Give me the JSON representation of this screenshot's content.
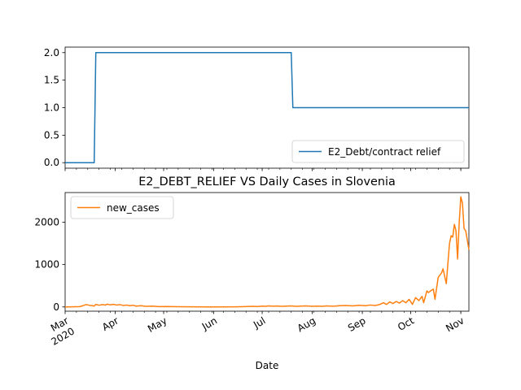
{
  "chart_data": [
    {
      "type": "line",
      "title": "",
      "xlabel": "",
      "ylabel": "",
      "ylim": [
        -0.1,
        2.1
      ],
      "yticks": [
        0.0,
        0.5,
        1.0,
        1.5,
        2.0
      ],
      "ytick_labels": [
        "0.0",
        "0.5",
        "1.0",
        "1.5",
        "2.0"
      ],
      "legend_position": "lower-right",
      "grid": false,
      "series": [
        {
          "name": "E2_Debt/contract relief",
          "color": "#1f77b4",
          "points": [
            [
              "2020-03-01",
              0
            ],
            [
              "2020-03-19",
              0
            ],
            [
              "2020-03-20",
              2
            ],
            [
              "2020-07-19",
              2
            ],
            [
              "2020-07-20",
              1
            ],
            [
              "2020-11-06",
              1
            ]
          ]
        }
      ]
    },
    {
      "type": "line",
      "title": "E2_DEBT_RELIEF VS Daily Cases in Slovenia",
      "xlabel": "Date",
      "ylabel": "",
      "ylim": [
        -100,
        2700
      ],
      "yticks": [
        0,
        1000,
        2000
      ],
      "ytick_labels": [
        "0",
        "1000",
        "2000"
      ],
      "xlim": [
        "2020-03-01",
        "2020-11-06"
      ],
      "xticks": [
        "2020-03-01",
        "2020-04-01",
        "2020-05-01",
        "2020-06-01",
        "2020-07-01",
        "2020-08-01",
        "2020-09-01",
        "2020-10-01",
        "2020-11-01"
      ],
      "xtick_labels": [
        "Mar\n2020",
        "Apr",
        "May",
        "Jun",
        "Jul",
        "Aug",
        "Sep",
        "Oct",
        "Nov"
      ],
      "legend_position": "upper-left",
      "grid": false,
      "series": [
        {
          "name": "new_cases",
          "color": "#ff7f0e",
          "points": [
            [
              "2020-03-01",
              0
            ],
            [
              "2020-03-05",
              2
            ],
            [
              "2020-03-08",
              5
            ],
            [
              "2020-03-10",
              8
            ],
            [
              "2020-03-12",
              30
            ],
            [
              "2020-03-14",
              55
            ],
            [
              "2020-03-16",
              40
            ],
            [
              "2020-03-18",
              30
            ],
            [
              "2020-03-19",
              20
            ],
            [
              "2020-03-20",
              60
            ],
            [
              "2020-03-22",
              40
            ],
            [
              "2020-03-24",
              55
            ],
            [
              "2020-03-26",
              45
            ],
            [
              "2020-03-27",
              65
            ],
            [
              "2020-03-29",
              50
            ],
            [
              "2020-03-31",
              60
            ],
            [
              "2020-04-02",
              45
            ],
            [
              "2020-04-04",
              55
            ],
            [
              "2020-04-06",
              35
            ],
            [
              "2020-04-08",
              45
            ],
            [
              "2020-04-10",
              30
            ],
            [
              "2020-04-12",
              40
            ],
            [
              "2020-04-14",
              20
            ],
            [
              "2020-04-17",
              30
            ],
            [
              "2020-04-20",
              15
            ],
            [
              "2020-04-24",
              20
            ],
            [
              "2020-04-28",
              8
            ],
            [
              "2020-05-03",
              10
            ],
            [
              "2020-05-10",
              5
            ],
            [
              "2020-05-20",
              2
            ],
            [
              "2020-06-01",
              1
            ],
            [
              "2020-06-15",
              4
            ],
            [
              "2020-06-20",
              8
            ],
            [
              "2020-06-25",
              15
            ],
            [
              "2020-06-28",
              10
            ],
            [
              "2020-07-01",
              20
            ],
            [
              "2020-07-03",
              15
            ],
            [
              "2020-07-05",
              25
            ],
            [
              "2020-07-08",
              18
            ],
            [
              "2020-07-10",
              22
            ],
            [
              "2020-07-13",
              15
            ],
            [
              "2020-07-16",
              20
            ],
            [
              "2020-07-19",
              25
            ],
            [
              "2020-07-22",
              15
            ],
            [
              "2020-07-25",
              20
            ],
            [
              "2020-07-28",
              25
            ],
            [
              "2020-08-01",
              15
            ],
            [
              "2020-08-04",
              20
            ],
            [
              "2020-08-07",
              15
            ],
            [
              "2020-08-10",
              25
            ],
            [
              "2020-08-14",
              18
            ],
            [
              "2020-08-18",
              30
            ],
            [
              "2020-08-22",
              35
            ],
            [
              "2020-08-26",
              25
            ],
            [
              "2020-08-30",
              40
            ],
            [
              "2020-09-03",
              30
            ],
            [
              "2020-09-06",
              45
            ],
            [
              "2020-09-09",
              35
            ],
            [
              "2020-09-12",
              60
            ],
            [
              "2020-09-14",
              100
            ],
            [
              "2020-09-16",
              60
            ],
            [
              "2020-09-18",
              120
            ],
            [
              "2020-09-20",
              80
            ],
            [
              "2020-09-22",
              130
            ],
            [
              "2020-09-24",
              90
            ],
            [
              "2020-09-26",
              150
            ],
            [
              "2020-09-28",
              100
            ],
            [
              "2020-09-30",
              180
            ],
            [
              "2020-10-02",
              60
            ],
            [
              "2020-10-04",
              220
            ],
            [
              "2020-10-06",
              150
            ],
            [
              "2020-10-08",
              250
            ],
            [
              "2020-10-09",
              100
            ],
            [
              "2020-10-11",
              380
            ],
            [
              "2020-10-12",
              340
            ],
            [
              "2020-10-14",
              400
            ],
            [
              "2020-10-15",
              420
            ],
            [
              "2020-10-16",
              180
            ],
            [
              "2020-10-18",
              700
            ],
            [
              "2020-10-20",
              800
            ],
            [
              "2020-10-21",
              900
            ],
            [
              "2020-10-23",
              550
            ],
            [
              "2020-10-25",
              1500
            ],
            [
              "2020-10-26",
              1680
            ],
            [
              "2020-10-27",
              1650
            ],
            [
              "2020-10-28",
              1950
            ],
            [
              "2020-10-29",
              1800
            ],
            [
              "2020-10-30",
              1130
            ],
            [
              "2020-10-31",
              2000
            ],
            [
              "2020-11-01",
              2600
            ],
            [
              "2020-11-02",
              2450
            ],
            [
              "2020-11-03",
              1850
            ],
            [
              "2020-11-04",
              1800
            ],
            [
              "2020-11-05",
              1580
            ],
            [
              "2020-11-06",
              1350
            ]
          ]
        }
      ]
    }
  ]
}
